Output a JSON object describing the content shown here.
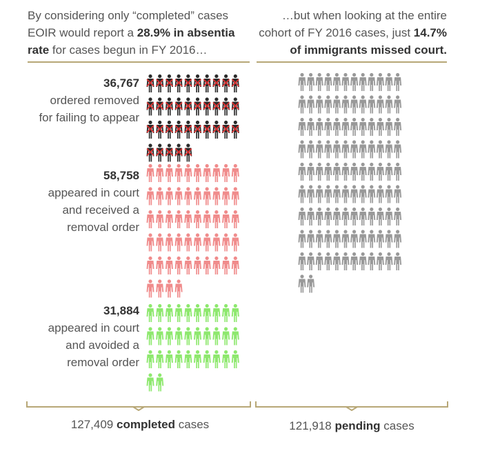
{
  "header": {
    "left": {
      "lines": [
        {
          "segments": [
            {
              "text": "By considering only “completed” cases",
              "bold": false
            }
          ]
        },
        {
          "segments": [
            {
              "text": "EOIR would report a ",
              "bold": false
            },
            {
              "text": "28.9% in absentia",
              "bold": true
            }
          ]
        },
        {
          "segments": [
            {
              "text": "rate",
              "bold": true
            },
            {
              "text": " for cases begun in FY 2016…",
              "bold": false
            }
          ]
        }
      ]
    },
    "right": {
      "lines": [
        {
          "segments": [
            {
              "text": "…but when looking at the entire",
              "bold": false
            }
          ]
        },
        {
          "segments": [
            {
              "text": "cohort of FY 2016 cases, just ",
              "bold": false
            },
            {
              "text": "14.7%",
              "bold": true
            }
          ]
        },
        {
          "segments": [
            {
              "text": "of immigrants missed court.",
              "bold": true
            }
          ]
        }
      ]
    }
  },
  "groups": [
    {
      "value": "36,767",
      "lines": [
        "ordered removed",
        "for failing to appear"
      ],
      "color": "#2b2b2b",
      "crossed": true,
      "icon_count": 35
    },
    {
      "value": "58,758",
      "lines": [
        "appeared in court",
        "and received a",
        "removal order"
      ],
      "color": "#f08c8c",
      "crossed": false,
      "icon_count": 54
    },
    {
      "value": "31,884",
      "lines": [
        "appeared in court",
        "and avoided a",
        "removal order"
      ],
      "color": "#8ee86e",
      "crossed": false,
      "icon_count": 32
    }
  ],
  "pending": {
    "color": "#999999",
    "icon_count": 110
  },
  "footer": {
    "left": {
      "segments": [
        {
          "text": "127,409 ",
          "bold": false
        },
        {
          "text": "completed",
          "bold": true
        },
        {
          "text": " cases",
          "bold": false
        }
      ]
    },
    "right": {
      "segments": [
        {
          "text": "121,918 ",
          "bold": false
        },
        {
          "text": "pending",
          "bold": true
        },
        {
          "text": " cases",
          "bold": false
        }
      ]
    }
  },
  "colors": {
    "rule": "#b7a776",
    "cross": "#e03030"
  }
}
